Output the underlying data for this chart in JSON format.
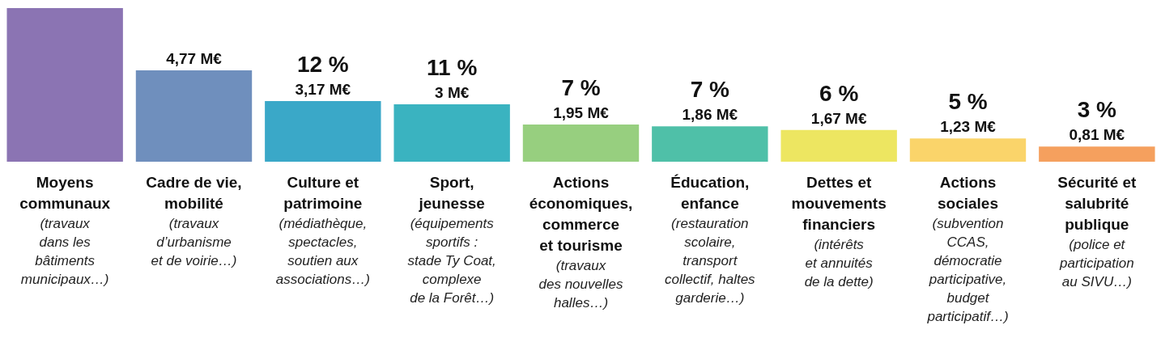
{
  "chart_data": {
    "type": "bar",
    "categories": [
      "Moyens\ncommunaux",
      "Cadre de vie,\nmobilité",
      "Culture et\npatrimoine",
      "Sport,\njeunesse",
      "Actions\néconomiques,\ncommerce\net tourisme",
      "Éducation,\nenfance",
      "Dettes et\nmouvements\nfinanciers",
      "Actions\nsociales",
      "Sécurité et\nsalubrité\npublique"
    ],
    "values": [
      8.0,
      4.77,
      3.17,
      3,
      1.95,
      1.86,
      1.67,
      1.23,
      0.81
    ],
    "colors": [
      "#8b74b3",
      "#6f8fbd",
      "#3aa8c8",
      "#3ab3c0",
      "#97cf7f",
      "#4fc0a8",
      "#ede661",
      "#fad46a",
      "#f5a05e"
    ],
    "value_labels": [
      null,
      "4,77 M€",
      "12 %\n3,17 M€",
      "11 %\n3 M€",
      "7 %\n1,95 M€",
      "7 %\n1,86 M€",
      "6 %\n1,67 M€",
      "5 %\n1,23 M€",
      "3 %\n0,81 M€"
    ],
    "annotations": [
      "(travaux\ndans les\nbâtiments\nmunicipaux…)",
      "(travaux\nd’urbanisme\net de voirie…)",
      "(médiathèque,\nspectacles,\nsoutien aux\nassociations…)",
      "(équipements\nsportifs :\nstade Ty Coat,\ncomplexe\nde la Forêt…)",
      "(travaux\ndes nouvelles\nhalles…)",
      "(restauration\nscolaire,\ntransport\ncollectif, haltes\ngarderie…)",
      "(intérêts\net annuités\nde la dette)",
      "(subvention\nCCAS,\ndémocratie\nparticipative,\nbudget\nparticipatif…)",
      "(police et\nparticipation\nau SIVU…)"
    ],
    "ylim": [
      0,
      8.4
    ],
    "grid": false
  }
}
